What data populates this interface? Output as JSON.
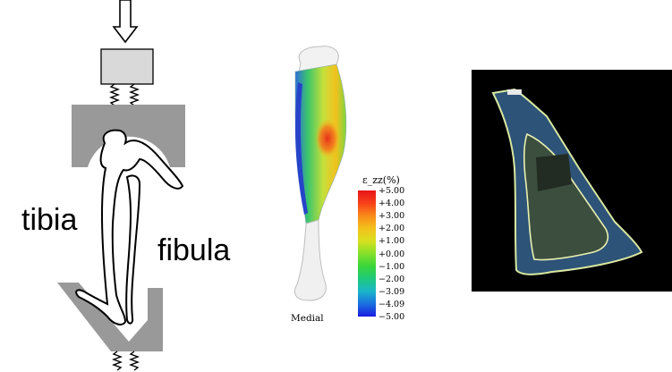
{
  "loading": {
    "tibia_label": "tibia",
    "fibula_label": "fibula"
  },
  "strain": {
    "title": "ε_zz(%)",
    "ticks": [
      "+5.00",
      "+4.00",
      "+3.00",
      "+2.00",
      "+1.00",
      "+0.00",
      "−1.00",
      "−2.00",
      "−3.09",
      "−4.09",
      "−5.00"
    ],
    "view_label": "Medial",
    "colors": {
      "max": "#e8141a",
      "mid": "#39d63a",
      "min": "#1a1ce0"
    }
  }
}
